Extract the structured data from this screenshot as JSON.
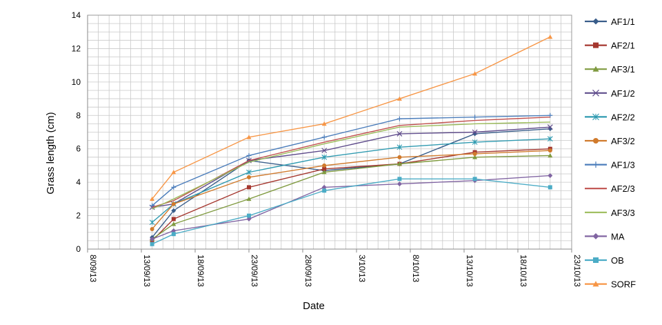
{
  "chart_data": {
    "type": "line",
    "xlabel": "Date",
    "ylabel": "Grass length (cm)",
    "x_dates": [
      "2013-09-14",
      "2013-09-16",
      "2013-09-23",
      "2013-09-30",
      "2013-10-07",
      "2013-10-14",
      "2013-10-21"
    ],
    "x_ticks": [
      {
        "date": "2013-09-08",
        "label": "8/09/13"
      },
      {
        "date": "2013-09-13",
        "label": "13/09/13"
      },
      {
        "date": "2013-09-18",
        "label": "18/09/13"
      },
      {
        "date": "2013-09-23",
        "label": "23/09/13"
      },
      {
        "date": "2013-09-28",
        "label": "28/09/13"
      },
      {
        "date": "2013-10-03",
        "label": "3/10/13"
      },
      {
        "date": "2013-10-08",
        "label": "8/10/13"
      },
      {
        "date": "2013-10-13",
        "label": "13/10/13"
      },
      {
        "date": "2013-10-18",
        "label": "18/10/13"
      },
      {
        "date": "2013-10-23",
        "label": "23/10/13"
      }
    ],
    "xlim": [
      "2013-09-08",
      "2013-10-23"
    ],
    "y_ticks": [
      0,
      2,
      4,
      6,
      8,
      10,
      12,
      14
    ],
    "ylim": [
      0,
      14
    ],
    "grid": true,
    "legend_position": "right",
    "series": [
      {
        "name": "AF1/1",
        "color": "#385D8A",
        "marker": "diamond",
        "values": [
          0.7,
          2.3,
          5.3,
          4.7,
          5.1,
          6.9,
          7.2
        ]
      },
      {
        "name": "AF2/1",
        "color": "#A5372F",
        "marker": "square",
        "values": [
          0.5,
          1.8,
          3.7,
          4.8,
          5.1,
          5.8,
          6.0
        ]
      },
      {
        "name": "AF3/1",
        "color": "#7F9A3F",
        "marker": "triangle",
        "values": [
          0.6,
          1.5,
          3.0,
          4.6,
          5.1,
          5.5,
          5.6
        ]
      },
      {
        "name": "AF1/2",
        "color": "#5E4B8B",
        "marker": "x",
        "values": [
          2.5,
          2.7,
          5.3,
          5.9,
          6.9,
          7.0,
          7.3
        ]
      },
      {
        "name": "AF2/2",
        "color": "#2E9AB0",
        "marker": "star",
        "values": [
          1.6,
          2.7,
          4.6,
          5.5,
          6.1,
          6.4,
          6.6
        ]
      },
      {
        "name": "AF3/2",
        "color": "#D07A2C",
        "marker": "circle",
        "values": [
          1.2,
          2.7,
          4.3,
          5.0,
          5.5,
          5.7,
          5.9
        ]
      },
      {
        "name": "AF1/3",
        "color": "#4B7DBB",
        "marker": "plus",
        "values": [
          2.6,
          3.7,
          5.6,
          6.7,
          7.8,
          7.9,
          8.0
        ]
      },
      {
        "name": "AF2/3",
        "color": "#C0504D",
        "marker": "none",
        "values": [
          2.5,
          2.9,
          5.3,
          6.4,
          7.4,
          7.7,
          7.9
        ]
      },
      {
        "name": "AF3/3",
        "color": "#9BBB59",
        "marker": "none",
        "values": [
          2.4,
          3.0,
          5.2,
          6.3,
          7.3,
          7.5,
          7.6
        ]
      },
      {
        "name": "MA",
        "color": "#8064A2",
        "marker": "diamond",
        "values": [
          0.6,
          1.1,
          1.8,
          3.7,
          3.9,
          4.1,
          4.4
        ]
      },
      {
        "name": "OB",
        "color": "#4BACC6",
        "marker": "square",
        "values": [
          0.3,
          0.9,
          2.0,
          3.5,
          4.2,
          4.2,
          3.7
        ]
      },
      {
        "name": "SORF",
        "color": "#F79646",
        "marker": "triangle",
        "values": [
          3.0,
          4.6,
          6.7,
          7.5,
          9.0,
          10.5,
          12.7
        ]
      }
    ]
  }
}
